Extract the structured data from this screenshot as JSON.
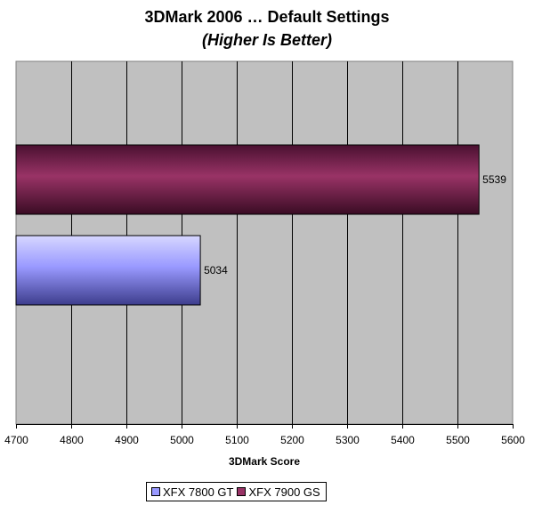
{
  "chart_data": {
    "type": "bar",
    "orientation": "horizontal",
    "title": "3DMark 2006 … Default Settings",
    "subtitle": "(Higher Is Better)",
    "xlabel": "3DMark Score",
    "ylabel": "",
    "xlim": [
      4700,
      5600
    ],
    "x_ticks": [
      "4700",
      "4800",
      "4900",
      "5000",
      "5100",
      "5200",
      "5300",
      "5400",
      "5500",
      "5600"
    ],
    "grid": true,
    "legend_position": "bottom",
    "series": [
      {
        "name": "XFX 7800 GT",
        "value": 5034,
        "value_label": "5034",
        "color": "#9999FF"
      },
      {
        "name": "XFX 7900 GS",
        "value": 5539,
        "value_label": "5539",
        "color": "#993366"
      }
    ],
    "plot_background": "#C0C0C0"
  }
}
